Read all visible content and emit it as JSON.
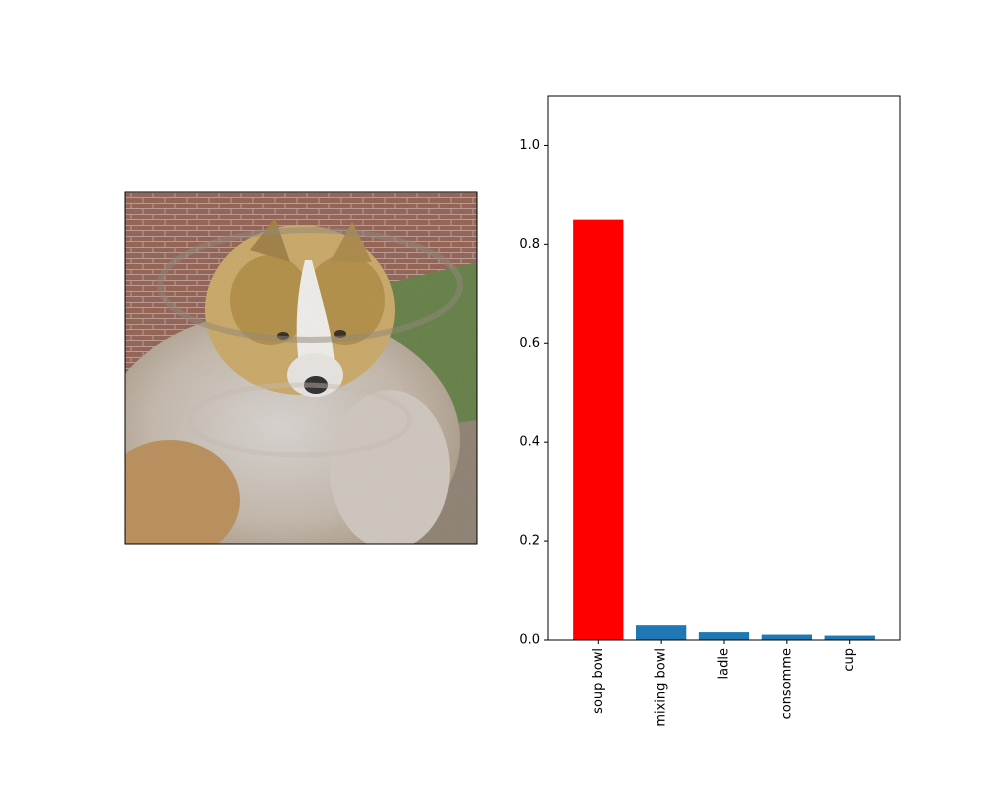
{
  "image_panel": {
    "subject": "collie-dog-photo-with-adversarial-noise",
    "palette": {
      "brick": "#8e5a4a",
      "grass": "#5d7a3d",
      "fur_tan": "#b88a52",
      "fur_white": "#e9e6e2",
      "ground": "#8a7c6c"
    }
  },
  "chart_data": {
    "type": "bar",
    "categories": [
      "soup bowl",
      "mixing bowl",
      "ladle",
      "consomme",
      "cup"
    ],
    "values": [
      0.85,
      0.03,
      0.016,
      0.011,
      0.009
    ],
    "colors": [
      "#ff0000",
      "#1f77b4",
      "#1f77b4",
      "#1f77b4",
      "#1f77b4"
    ],
    "highlight_index": 0,
    "ylim": [
      0,
      1.1
    ],
    "yticks": [
      0.0,
      0.2,
      0.4,
      0.6,
      0.8,
      1.0
    ],
    "ytick_labels": [
      "0.0",
      "0.2",
      "0.4",
      "0.6",
      "0.8",
      "1.0"
    ],
    "xtick_rotation": "vertical",
    "title": "",
    "xlabel": "",
    "ylabel": "",
    "grid": false
  }
}
